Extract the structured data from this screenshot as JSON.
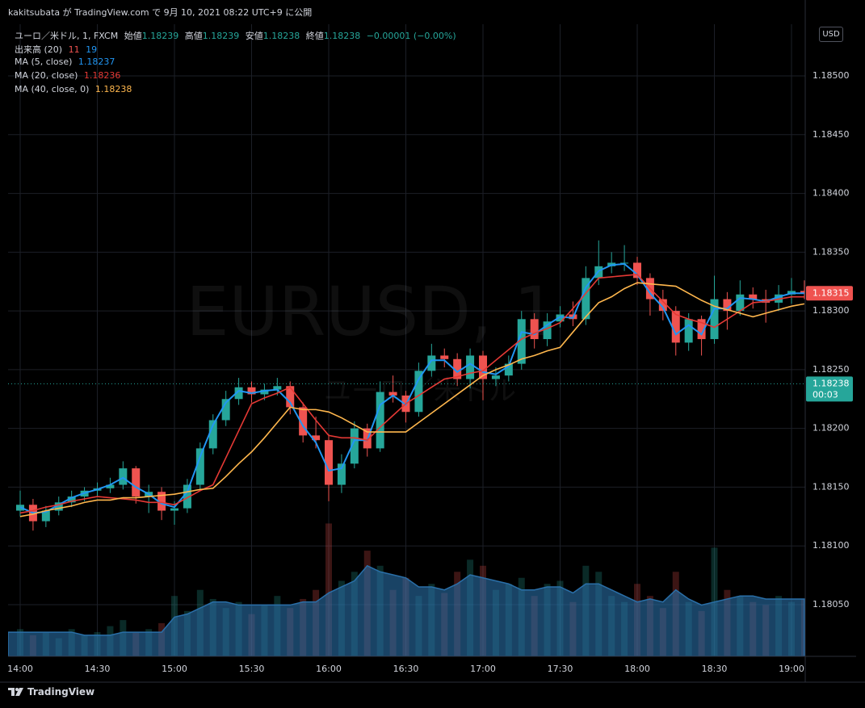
{
  "header": {
    "text": "kakitsubata が TradingView.com で 9月 10, 2021 08:22 UTC+9 に公開"
  },
  "chart_data": {
    "type": "candlestick",
    "symbol_legend": {
      "title": "ユーロ／米ドル, 1, FXCM",
      "fields": [
        {
          "label": "始値",
          "value": "1.18239"
        },
        {
          "label": "高値",
          "value": "1.18239"
        },
        {
          "label": "安値",
          "value": "1.18238"
        },
        {
          "label": "終値",
          "value": "1.18238"
        }
      ],
      "change": "−0.00001 (−0.00%)"
    },
    "watermark": [
      "EURUSD, 1",
      "ユーロ／米ドル"
    ],
    "currency": "USD",
    "x": [
      "14:00",
      "14:05",
      "14:10",
      "14:15",
      "14:20",
      "14:25",
      "14:30",
      "14:35",
      "14:40",
      "14:45",
      "14:50",
      "14:55",
      "15:00",
      "15:05",
      "15:10",
      "15:15",
      "15:20",
      "15:25",
      "15:30",
      "15:35",
      "15:40",
      "15:45",
      "15:50",
      "15:55",
      "16:00",
      "16:05",
      "16:10",
      "16:15",
      "16:20",
      "16:25",
      "16:30",
      "16:35",
      "16:40",
      "16:45",
      "16:50",
      "16:55",
      "17:00",
      "17:05",
      "17:10",
      "17:15",
      "17:20",
      "17:25",
      "17:30",
      "17:35",
      "17:40",
      "17:45",
      "17:50",
      "17:55",
      "18:00",
      "18:05",
      "18:10",
      "18:15",
      "18:20",
      "18:25",
      "18:30",
      "18:35",
      "18:40",
      "18:45",
      "18:50",
      "18:55",
      "19:00",
      "19:05"
    ],
    "open": [
      1.1813,
      1.18135,
      1.18121,
      1.1813,
      1.18137,
      1.18142,
      1.18147,
      1.18149,
      1.18152,
      1.18166,
      1.18142,
      1.18146,
      1.1813,
      1.18132,
      1.18152,
      1.18183,
      1.18207,
      1.18225,
      1.18235,
      1.18229,
      1.18233,
      1.18236,
      1.18218,
      1.18194,
      1.1819,
      1.18152,
      1.1817,
      1.182,
      1.18183,
      1.18231,
      1.18228,
      1.18214,
      1.18249,
      1.18262,
      1.18259,
      1.18242,
      1.18262,
      1.18242,
      1.18245,
      1.18255,
      1.18293,
      1.18276,
      1.18291,
      1.18297,
      1.18293,
      1.18328,
      1.18338,
      1.18341,
      1.18341,
      1.18328,
      1.1831,
      1.183,
      1.18273,
      1.18293,
      1.18276,
      1.1831,
      1.183,
      1.18314,
      1.1831,
      1.18307,
      1.18314,
      1.18317
    ],
    "high": [
      1.18147,
      1.1814,
      1.18134,
      1.18142,
      1.18147,
      1.1815,
      1.18154,
      1.18158,
      1.18172,
      1.18168,
      1.18152,
      1.1815,
      1.18138,
      1.18157,
      1.18188,
      1.18212,
      1.18232,
      1.18243,
      1.1824,
      1.18238,
      1.18243,
      1.1824,
      1.18222,
      1.1821,
      1.18195,
      1.18178,
      1.18206,
      1.18204,
      1.1824,
      1.18245,
      1.18232,
      1.18256,
      1.18272,
      1.18268,
      1.18264,
      1.18268,
      1.18266,
      1.18252,
      1.18262,
      1.183,
      1.18298,
      1.18298,
      1.18304,
      1.18308,
      1.18338,
      1.1836,
      1.1835,
      1.18356,
      1.18346,
      1.18332,
      1.18318,
      1.18304,
      1.18298,
      1.18296,
      1.1833,
      1.18316,
      1.18326,
      1.1832,
      1.18318,
      1.18322,
      1.18328,
      1.18326
    ],
    "low": [
      1.18125,
      1.18113,
      1.18116,
      1.18126,
      1.18133,
      1.18138,
      1.18142,
      1.18145,
      1.18148,
      1.18136,
      1.18128,
      1.18122,
      1.18118,
      1.18128,
      1.18148,
      1.18178,
      1.18202,
      1.1822,
      1.18222,
      1.18224,
      1.18228,
      1.18212,
      1.18188,
      1.18183,
      1.18138,
      1.18145,
      1.18166,
      1.18176,
      1.1818,
      1.18222,
      1.18205,
      1.1821,
      1.18244,
      1.18252,
      1.18236,
      1.18234,
      1.18224,
      1.18236,
      1.1824,
      1.1825,
      1.18268,
      1.1827,
      1.18286,
      1.18287,
      1.18288,
      1.18322,
      1.18332,
      1.18334,
      1.18322,
      1.18296,
      1.18292,
      1.18262,
      1.18266,
      1.18262,
      1.18272,
      1.18284,
      1.18296,
      1.18302,
      1.1829,
      1.183,
      1.18306,
      1.1831
    ],
    "close": [
      1.18135,
      1.18121,
      1.1813,
      1.18137,
      1.18142,
      1.18147,
      1.18149,
      1.18152,
      1.18166,
      1.18142,
      1.18146,
      1.1813,
      1.18132,
      1.18152,
      1.18183,
      1.18207,
      1.18225,
      1.18235,
      1.18229,
      1.18233,
      1.18236,
      1.18218,
      1.18194,
      1.1819,
      1.18152,
      1.1817,
      1.182,
      1.18183,
      1.18231,
      1.18228,
      1.18214,
      1.18249,
      1.18262,
      1.18259,
      1.18242,
      1.18262,
      1.18242,
      1.18245,
      1.18255,
      1.18293,
      1.18276,
      1.18291,
      1.18297,
      1.18293,
      1.18328,
      1.18338,
      1.18341,
      1.18341,
      1.18328,
      1.1831,
      1.183,
      1.18273,
      1.18293,
      1.18276,
      1.1831,
      1.183,
      1.18314,
      1.1831,
      1.18307,
      1.18314,
      1.18317,
      1.18315
    ],
    "up_color": "#26a69a",
    "down_color": "#ef5350",
    "series": [
      {
        "name": "MA (5, close)",
        "legend_value": "1.18237",
        "color": "#2196f3",
        "values": [
          1.18133,
          1.18128,
          1.18129,
          1.18135,
          1.18141,
          1.18145,
          1.18148,
          1.18152,
          1.18158,
          1.1815,
          1.18144,
          1.18136,
          1.18133,
          1.18146,
          1.18176,
          1.18203,
          1.18222,
          1.18232,
          1.1823,
          1.18232,
          1.18233,
          1.18222,
          1.18202,
          1.18188,
          1.18164,
          1.18166,
          1.1819,
          1.1819,
          1.1822,
          1.18228,
          1.1822,
          1.18242,
          1.18258,
          1.18258,
          1.18248,
          1.18255,
          1.18248,
          1.18246,
          1.18253,
          1.18282,
          1.1828,
          1.18288,
          1.18295,
          1.18294,
          1.1832,
          1.18334,
          1.18339,
          1.1834,
          1.18331,
          1.18315,
          1.18303,
          1.1828,
          1.18288,
          1.1828,
          1.18302,
          1.18302,
          1.18311,
          1.1831,
          1.18308,
          1.18312,
          1.18315,
          1.18315
        ]
      },
      {
        "name": "MA (20, close)",
        "legend_value": "1.18236",
        "color": "#e53935",
        "values": [
          1.18128,
          1.1813,
          1.18133,
          1.18135,
          1.18138,
          1.1814,
          1.18142,
          1.18141,
          1.1814,
          1.18139,
          1.18137,
          1.18137,
          1.18135,
          1.18141,
          1.18147,
          1.18152,
          1.18175,
          1.18198,
          1.18221,
          1.18226,
          1.1823,
          1.18235,
          1.18221,
          1.18207,
          1.18194,
          1.18192,
          1.18192,
          1.1819,
          1.18201,
          1.18211,
          1.18221,
          1.18228,
          1.18235,
          1.18242,
          1.18244,
          1.18247,
          1.18249,
          1.18258,
          1.18267,
          1.18276,
          1.18281,
          1.18285,
          1.1829,
          1.18302,
          1.18315,
          1.18328,
          1.18329,
          1.1833,
          1.18331,
          1.18319,
          1.18308,
          1.18297,
          1.18293,
          1.1829,
          1.18286,
          1.18293,
          1.183,
          1.18307,
          1.18308,
          1.1831,
          1.18312,
          1.18312
        ]
      },
      {
        "name": "MA (40, close, 0)",
        "legend_value": "1.18238",
        "color": "#ffb74d",
        "values": [
          1.18125,
          1.18127,
          1.1813,
          1.18132,
          1.18134,
          1.18137,
          1.18139,
          1.18139,
          1.18141,
          1.18141,
          1.18142,
          1.18143,
          1.18144,
          1.18146,
          1.18148,
          1.18149,
          1.18159,
          1.1817,
          1.1818,
          1.18192,
          1.18205,
          1.18218,
          1.18216,
          1.18216,
          1.18214,
          1.18209,
          1.18203,
          1.18197,
          1.18197,
          1.18197,
          1.18197,
          1.18205,
          1.18213,
          1.18221,
          1.18229,
          1.18237,
          1.18245,
          1.1825,
          1.18254,
          1.18259,
          1.18262,
          1.18266,
          1.18269,
          1.18282,
          1.18295,
          1.18307,
          1.18312,
          1.18319,
          1.18324,
          1.18323,
          1.18322,
          1.18321,
          1.18315,
          1.18309,
          1.18304,
          1.18301,
          1.18298,
          1.18295,
          1.18298,
          1.18301,
          1.18304,
          1.18306
        ]
      }
    ],
    "volume": {
      "name": "出来高 (20)",
      "legend_values": [
        "11",
        "19"
      ],
      "ma_color": "#2a6fa8",
      "ylim": [
        0,
        50
      ],
      "values": [
        9,
        7,
        8,
        6,
        9,
        7,
        8,
        10,
        12,
        8,
        9,
        11,
        20,
        15,
        22,
        19,
        16,
        18,
        14,
        17,
        20,
        16,
        19,
        22,
        44,
        25,
        28,
        35,
        30,
        22,
        26,
        20,
        24,
        21,
        28,
        32,
        30,
        22,
        24,
        26,
        20,
        24,
        25,
        18,
        30,
        28,
        20,
        18,
        24,
        20,
        16,
        28,
        18,
        15,
        36,
        22,
        20,
        18,
        17,
        20,
        18,
        19
      ],
      "ma_values": [
        8,
        8,
        8,
        8,
        8,
        7,
        7,
        7,
        8,
        8,
        8,
        8,
        13,
        14,
        16,
        18,
        18,
        17,
        17,
        17,
        17,
        17,
        18,
        18,
        21,
        23,
        25,
        30,
        28,
        27,
        26,
        23,
        23,
        22,
        24,
        27,
        26,
        25,
        24,
        22,
        22,
        23,
        23,
        21,
        24,
        24,
        22,
        20,
        18,
        19,
        18,
        22,
        19,
        17,
        18,
        19,
        20,
        20,
        19,
        19,
        19,
        19
      ]
    },
    "ylim": [
      1.18006,
      1.18544
    ],
    "yticks": [
      {
        "value": 1.185,
        "label": "1.18500"
      },
      {
        "value": 1.1845,
        "label": "1.18450"
      },
      {
        "value": 1.184,
        "label": "1.18400"
      },
      {
        "value": 1.1835,
        "label": "1.18350"
      },
      {
        "value": 1.183,
        "label": "1.18300"
      },
      {
        "value": 1.1825,
        "label": "1.18250"
      },
      {
        "value": 1.182,
        "label": "1.18200"
      },
      {
        "value": 1.1815,
        "label": "1.18150"
      },
      {
        "value": 1.181,
        "label": "1.18100"
      },
      {
        "value": 1.1805,
        "label": "1.18050"
      }
    ],
    "xticks": [
      "14:00",
      "14:30",
      "15:00",
      "15:30",
      "16:00",
      "16:30",
      "17:00",
      "17:30",
      "18:00",
      "18:30",
      "19:00"
    ],
    "grid": true,
    "last_price": 1.18315,
    "price_line": {
      "value": 1.18238,
      "countdown": "00:03"
    }
  },
  "footer": {
    "brand": "TradingView"
  }
}
